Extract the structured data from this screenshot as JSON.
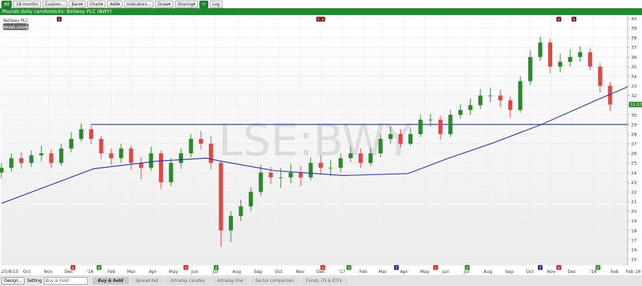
{
  "toolbar": {
    "buttons": [
      "All",
      "18 months",
      "Custom...",
      "Bars▾",
      "Chart▾",
      "Add▾",
      "Indicators...",
      "Draw▾",
      "Sharing▾",
      "+",
      "Log"
    ]
  },
  "chart_data": {
    "type": "candlestick",
    "title": "Pounds daily candlesticks: Bellway PLC (BWY)",
    "legend_label": "Bellway PLC",
    "reset_button": "Reset zoom",
    "watermark": "LSE:BWY",
    "up_color": "#2a8a2a",
    "down_color": "#e04848",
    "grid": true,
    "x": [
      0,
      14.5,
      29,
      43.5,
      58,
      72.5,
      87,
      101.5,
      116,
      130.5,
      145,
      159.5,
      174,
      188.5,
      203,
      217.5,
      232,
      246.5,
      261,
      275.5,
      290,
      304.5,
      319,
      333.5,
      348,
      362.5,
      377,
      391.5,
      406,
      420.5,
      435,
      449.5,
      464,
      478.5,
      493,
      507.5,
      522,
      536.5,
      551,
      565.5,
      580,
      594.5,
      609,
      623.5,
      638,
      652.5,
      667,
      681.5,
      696,
      710.5,
      725,
      739.5,
      754,
      768.5,
      783,
      797.5,
      812,
      826.5,
      841,
      855.5,
      870,
      884.5
    ],
    "open": [
      24,
      24.5,
      25.5,
      25,
      25.8,
      26,
      25,
      26.5,
      27.5,
      28.5,
      27.5,
      26,
      25.5,
      26.5,
      25,
      24.5,
      26,
      23,
      25,
      26,
      27.5,
      27,
      25,
      18,
      19.5,
      20.5,
      22,
      24,
      23.5,
      23.5,
      24,
      23.5,
      25,
      24.5,
      24.5,
      25.5,
      26,
      25,
      26,
      27.5,
      28,
      27,
      28,
      29.5,
      29.5,
      28,
      30,
      30.5,
      31,
      32,
      32,
      31.5,
      30.5,
      33.5,
      36,
      37.5,
      35,
      35.5,
      36,
      36.5,
      35,
      33
    ],
    "high": [
      25,
      26,
      26.1,
      26.3,
      26.8,
      26.4,
      27,
      28.2,
      29.1,
      28.9,
      27.8,
      26.5,
      27,
      26.8,
      25.6,
      26.7,
      26.3,
      25.5,
      26.5,
      28,
      28.3,
      27.8,
      25.2,
      20,
      21.2,
      22.5,
      24.8,
      24.6,
      24.5,
      24.9,
      24.7,
      25.6,
      25.8,
      25.3,
      26,
      26.7,
      26.5,
      26.6,
      28,
      28.8,
      28.5,
      28.7,
      30,
      30.1,
      29.9,
      30.5,
      31.1,
      31.7,
      32.7,
      32.8,
      32.6,
      31.9,
      34,
      36.7,
      38.1,
      37.9,
      36.3,
      36.8,
      37.1,
      36.9,
      35.4,
      33.4
    ],
    "low": [
      23.4,
      24.1,
      24.4,
      24.6,
      25.2,
      24.5,
      24.7,
      26.1,
      27.2,
      26.9,
      25.4,
      24.8,
      25,
      24.3,
      23.3,
      24.2,
      22.3,
      22.6,
      24.4,
      25.6,
      26.4,
      24.3,
      16.3,
      16.8,
      19,
      20,
      21.6,
      22.8,
      22.4,
      22.9,
      22.6,
      23.2,
      23.8,
      23.6,
      24,
      25.1,
      24.5,
      24.7,
      25.6,
      27,
      26.6,
      26.8,
      27.7,
      28.8,
      27.4,
      27.7,
      29.6,
      30,
      30.6,
      31.3,
      30.8,
      29.7,
      30.2,
      33.1,
      35.6,
      34.3,
      34.4,
      35,
      35.5,
      34.6,
      32.3,
      30.4
    ],
    "close": [
      24.5,
      25.5,
      25,
      25.8,
      26,
      25,
      26.5,
      27.5,
      28.5,
      27.5,
      26,
      25.5,
      26.5,
      25,
      24.5,
      26,
      23,
      25,
      26,
      27.5,
      27,
      25,
      18,
      19.5,
      20.5,
      22,
      24,
      23.5,
      23.5,
      24,
      23.5,
      25,
      24.5,
      24.5,
      25.5,
      26,
      25,
      26,
      27.5,
      28,
      27,
      28,
      29.5,
      29.5,
      28,
      30,
      30.5,
      31,
      32,
      32,
      31.5,
      30.5,
      33.5,
      36,
      37.5,
      35,
      35.5,
      36,
      36.5,
      35,
      33,
      31.07
    ],
    "ma": {
      "color": "#2233bb",
      "x": [
        0,
        134,
        228,
        298,
        318,
        397,
        497,
        591,
        646,
        715,
        785,
        864,
        910
      ],
      "values": [
        20.8,
        24.4,
        25.2,
        25.5,
        25.2,
        24.2,
        23.7,
        23.9,
        25.4,
        27.1,
        29,
        31.5,
        32.9
      ]
    },
    "hline": {
      "value": 29,
      "from": 130,
      "color": "#2233bb"
    },
    "last_price": 31.07,
    "last_price_color": "#2a8a2a",
    "xlim": [
      0,
      910
    ],
    "ylim": [
      15,
      40
    ],
    "yticks": [
      15,
      16,
      17,
      18,
      19,
      20,
      21,
      22,
      23,
      24,
      25,
      26,
      27,
      28,
      29,
      30,
      31,
      32,
      33,
      34,
      35,
      36,
      37,
      38,
      39,
      40
    ],
    "xticks": [
      {
        "value": 0,
        "label": "25/8/15"
      },
      {
        "value": 37,
        "label": "Oct"
      },
      {
        "value": 68,
        "label": "Nov"
      },
      {
        "value": 98,
        "label": "Dec"
      },
      {
        "value": 129,
        "label": "'16"
      },
      {
        "value": 160,
        "label": "Feb"
      },
      {
        "value": 189,
        "label": "Mar"
      },
      {
        "value": 220,
        "label": "Apr"
      },
      {
        "value": 250,
        "label": "May"
      },
      {
        "value": 281,
        "label": "Jun"
      },
      {
        "value": 311,
        "label": "Jul"
      },
      {
        "value": 342,
        "label": "Aug"
      },
      {
        "value": 373,
        "label": "Sep"
      },
      {
        "value": 403,
        "label": "Oct"
      },
      {
        "value": 434,
        "label": "Nov"
      },
      {
        "value": 464,
        "label": "Dec"
      },
      {
        "value": 495,
        "label": "'17"
      },
      {
        "value": 526,
        "label": "Feb"
      },
      {
        "value": 554,
        "label": "Mar"
      },
      {
        "value": 585,
        "label": "Apr"
      },
      {
        "value": 615,
        "label": "May"
      },
      {
        "value": 646,
        "label": "Jun"
      },
      {
        "value": 676,
        "label": "Jul"
      },
      {
        "value": 707,
        "label": "Aug"
      },
      {
        "value": 738,
        "label": "Sep"
      },
      {
        "value": 768,
        "label": "Oct"
      },
      {
        "value": 799,
        "label": "Nov"
      },
      {
        "value": 829,
        "label": "Dec"
      },
      {
        "value": 860,
        "label": "'18"
      },
      {
        "value": 891,
        "label": "Feb"
      },
      {
        "value": 910,
        "label": "Feb 18"
      }
    ],
    "top_events": [
      {
        "x": 84,
        "label": "s",
        "color": "#7a1f1f"
      },
      {
        "x": 461,
        "label": "t",
        "color": "#7a1f1f"
      },
      {
        "x": 467,
        "label": "s",
        "color": "#7a1f1f"
      },
      {
        "x": 810,
        "label": "s",
        "color": "#7a1f1f"
      },
      {
        "x": 832,
        "label": "s",
        "color": "#7a1f1f"
      }
    ],
    "bottom_events": [
      {
        "x": 104,
        "label": "s",
        "color": "#d03030"
      },
      {
        "x": 142,
        "label": "d",
        "color": "#1f8a2e"
      },
      {
        "x": 268,
        "label": "s",
        "color": "#d03030"
      },
      {
        "x": 312,
        "label": "d",
        "color": "#1f8a2e"
      },
      {
        "x": 467,
        "label": "s",
        "color": "#d03030"
      },
      {
        "x": 505,
        "label": "d",
        "color": "#1f8a2e"
      },
      {
        "x": 574,
        "label": "f",
        "color": "#2233aa"
      },
      {
        "x": 631,
        "label": "s",
        "color": "#d03030"
      },
      {
        "x": 677,
        "label": "d",
        "color": "#1f8a2e"
      },
      {
        "x": 783,
        "label": "f",
        "color": "#2233aa"
      },
      {
        "x": 810,
        "label": "s",
        "color": "#d03030"
      },
      {
        "x": 867,
        "label": "d",
        "color": "#1f8a2e"
      }
    ]
  },
  "bottom_bar": {
    "design": "Design...",
    "setting_label": "Setting",
    "setting_value": "Buy & hold",
    "tabs": [
      "Buy & hold",
      "Spread bet",
      "Intraday candles",
      "Intraday line",
      "Sector comparison",
      "Funds, ITs & ETFs"
    ]
  }
}
